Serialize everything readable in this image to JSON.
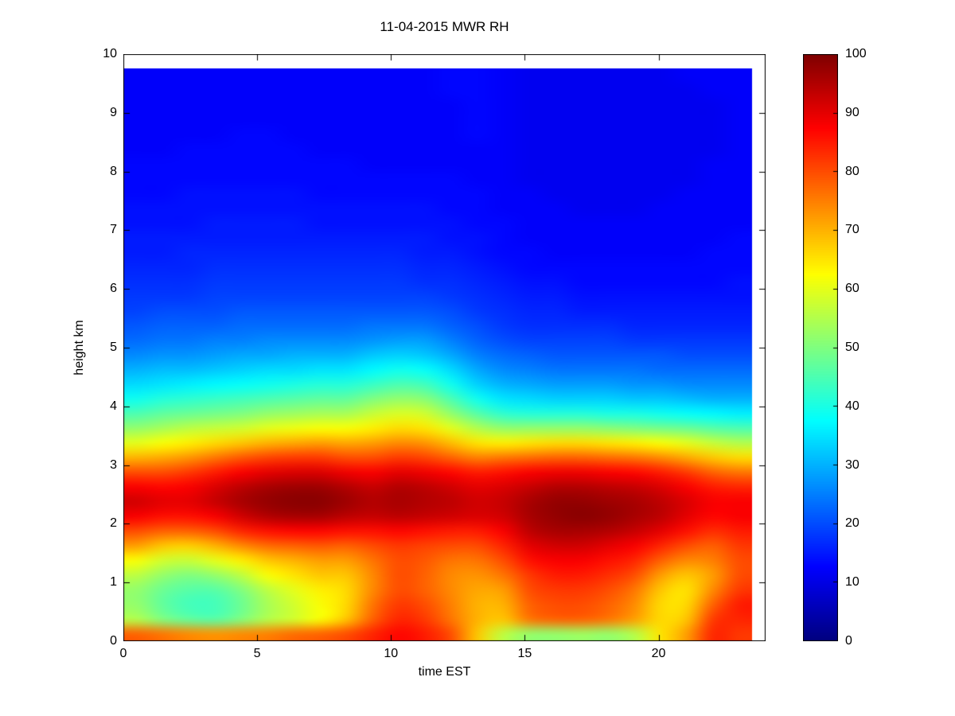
{
  "figure": {
    "title": "11-04-2015 MWR RH",
    "xlabel": "time EST",
    "ylabel": "height km"
  },
  "chart_data": {
    "type": "heatmap",
    "title": "11-04-2015 MWR RH",
    "xlabel": "time EST",
    "ylabel": "height km",
    "colormap": "jet",
    "grid_on": false,
    "xlim": [
      0,
      24
    ],
    "ylim": [
      0,
      10
    ],
    "data_extent": {
      "x": [
        0,
        23.5
      ],
      "y": [
        0,
        9.75
      ]
    },
    "xticks": [
      0,
      5,
      10,
      15,
      20
    ],
    "yticks": [
      0,
      1,
      2,
      3,
      4,
      5,
      6,
      7,
      8,
      9,
      10
    ],
    "colorbar": {
      "min": 0,
      "max": 100,
      "ticks": [
        0,
        10,
        20,
        30,
        40,
        50,
        60,
        70,
        80,
        90,
        100
      ]
    },
    "grid_description": "RH percent; 24 hourly columns (t=0..23 EST) x 39 rows of 0.25 km (0 to 9.75 km); rows ordered bottom_to_top",
    "rows_order": "bottom_to_top",
    "col_width_hr": 1,
    "row_height_km": 0.25,
    "values_rh_percent": [
      [
        78,
        76,
        74,
        73,
        74,
        75,
        77,
        78,
        80,
        84,
        87,
        85,
        80,
        68,
        56,
        52,
        52,
        53,
        52,
        55,
        65,
        72,
        84,
        82
      ],
      [
        55,
        50,
        47,
        46,
        50,
        55,
        58,
        62,
        68,
        78,
        84,
        82,
        76,
        70,
        68,
        76,
        78,
        78,
        76,
        72,
        66,
        68,
        82,
        84
      ],
      [
        52,
        47,
        44,
        44,
        48,
        54,
        58,
        62,
        66,
        76,
        82,
        80,
        75,
        70,
        70,
        78,
        80,
        80,
        78,
        74,
        66,
        66,
        78,
        85
      ],
      [
        52,
        48,
        46,
        46,
        50,
        56,
        60,
        64,
        66,
        74,
        80,
        78,
        74,
        71,
        72,
        80,
        82,
        82,
        80,
        76,
        68,
        65,
        74,
        82
      ],
      [
        56,
        52,
        50,
        52,
        56,
        62,
        65,
        68,
        68,
        74,
        80,
        78,
        74,
        73,
        76,
        82,
        85,
        85,
        83,
        80,
        72,
        68,
        72,
        80
      ],
      [
        62,
        58,
        57,
        60,
        64,
        68,
        70,
        72,
        72,
        76,
        80,
        79,
        76,
        76,
        80,
        86,
        88,
        88,
        86,
        84,
        78,
        74,
        75,
        80
      ],
      [
        72,
        68,
        67,
        70,
        74,
        77,
        78,
        79,
        78,
        80,
        82,
        81,
        80,
        80,
        84,
        90,
        92,
        92,
        90,
        88,
        84,
        80,
        78,
        82
      ],
      [
        80,
        78,
        78,
        80,
        84,
        86,
        87,
        87,
        86,
        86,
        87,
        86,
        85,
        85,
        88,
        94,
        96,
        96,
        95,
        93,
        90,
        86,
        83,
        85
      ],
      [
        88,
        86,
        86,
        88,
        92,
        95,
        96,
        96,
        94,
        93,
        94,
        93,
        92,
        91,
        92,
        96,
        98,
        99,
        98,
        96,
        94,
        90,
        87,
        88
      ],
      [
        92,
        90,
        90,
        93,
        96,
        98,
        99,
        99,
        97,
        95,
        96,
        95,
        94,
        92,
        93,
        96,
        98,
        98,
        97,
        96,
        94,
        91,
        88,
        88
      ],
      [
        88,
        87,
        88,
        91,
        94,
        96,
        97,
        97,
        95,
        93,
        95,
        94,
        92,
        90,
        91,
        93,
        95,
        95,
        94,
        93,
        91,
        88,
        85,
        84
      ],
      [
        80,
        80,
        82,
        85,
        88,
        90,
        91,
        91,
        89,
        88,
        90,
        89,
        87,
        85,
        86,
        88,
        89,
        89,
        88,
        87,
        85,
        82,
        78,
        76
      ],
      [
        70,
        71,
        73,
        76,
        79,
        81,
        82,
        82,
        80,
        80,
        82,
        81,
        78,
        75,
        76,
        77,
        78,
        78,
        77,
        76,
        74,
        71,
        68,
        66
      ],
      [
        60,
        62,
        64,
        66,
        68,
        70,
        71,
        72,
        71,
        72,
        74,
        73,
        69,
        65,
        64,
        65,
        66,
        66,
        65,
        64,
        62,
        60,
        57,
        55
      ],
      [
        52,
        54,
        56,
        57,
        58,
        60,
        61,
        62,
        62,
        64,
        66,
        65,
        60,
        55,
        52,
        52,
        52,
        52,
        51,
        50,
        49,
        48,
        46,
        45
      ],
      [
        45,
        47,
        48,
        49,
        50,
        52,
        53,
        54,
        54,
        57,
        59,
        58,
        52,
        46,
        42,
        41,
        41,
        41,
        40,
        40,
        39,
        38,
        37,
        36
      ],
      [
        39,
        41,
        42,
        43,
        44,
        45,
        46,
        47,
        47,
        50,
        52,
        51,
        45,
        39,
        35,
        34,
        33,
        33,
        33,
        32,
        32,
        31,
        30,
        30
      ],
      [
        34,
        35,
        36,
        37,
        38,
        39,
        40,
        41,
        41,
        43,
        45,
        44,
        39,
        33,
        30,
        29,
        28,
        28,
        28,
        27,
        27,
        26,
        26,
        26
      ],
      [
        30,
        31,
        31,
        32,
        33,
        34,
        34,
        35,
        35,
        37,
        39,
        38,
        34,
        29,
        26,
        25,
        24,
        24,
        24,
        24,
        23,
        23,
        23,
        23
      ],
      [
        26,
        27,
        27,
        28,
        29,
        29,
        30,
        30,
        30,
        32,
        33,
        32,
        29,
        25,
        23,
        22,
        21,
        21,
        21,
        21,
        21,
        20,
        20,
        20
      ],
      [
        23,
        24,
        24,
        25,
        25,
        26,
        26,
        26,
        26,
        27,
        28,
        28,
        25,
        22,
        20,
        19,
        19,
        19,
        19,
        18,
        18,
        18,
        18,
        18
      ],
      [
        21,
        22,
        22,
        22,
        23,
        23,
        23,
        23,
        23,
        24,
        24,
        24,
        22,
        20,
        18,
        17,
        17,
        17,
        17,
        16,
        16,
        16,
        16,
        16
      ],
      [
        19,
        20,
        20,
        20,
        21,
        21,
        21,
        21,
        21,
        21,
        21,
        21,
        20,
        18,
        17,
        16,
        16,
        15,
        15,
        15,
        15,
        15,
        15,
        15
      ],
      [
        18,
        18,
        18,
        19,
        19,
        19,
        19,
        19,
        19,
        19,
        19,
        19,
        18,
        17,
        16,
        15,
        15,
        14,
        14,
        14,
        14,
        14,
        14,
        14
      ],
      [
        17,
        17,
        17,
        18,
        18,
        18,
        18,
        18,
        18,
        18,
        18,
        17,
        17,
        16,
        15,
        14,
        14,
        13,
        13,
        13,
        13,
        13,
        13,
        14
      ],
      [
        16,
        16,
        16,
        17,
        17,
        17,
        17,
        17,
        17,
        17,
        17,
        16,
        16,
        15,
        14,
        13,
        13,
        13,
        13,
        13,
        13,
        13,
        13,
        13
      ],
      [
        15,
        15,
        16,
        16,
        16,
        16,
        16,
        16,
        16,
        16,
        16,
        15,
        15,
        14,
        13,
        13,
        12,
        12,
        12,
        12,
        12,
        12,
        13,
        13
      ],
      [
        15,
        15,
        15,
        15,
        15,
        15,
        15,
        15,
        15,
        15,
        15,
        15,
        14,
        14,
        13,
        12,
        12,
        12,
        12,
        12,
        12,
        12,
        12,
        13
      ],
      [
        14,
        14,
        14,
        15,
        15,
        15,
        15,
        14,
        14,
        14,
        14,
        14,
        14,
        13,
        13,
        12,
        12,
        12,
        12,
        12,
        12,
        12,
        12,
        12
      ],
      [
        14,
        14,
        14,
        14,
        14,
        14,
        14,
        14,
        14,
        14,
        14,
        14,
        13,
        13,
        12,
        12,
        12,
        11,
        11,
        11,
        12,
        12,
        12,
        12
      ],
      [
        13,
        13,
        14,
        14,
        14,
        14,
        14,
        13,
        13,
        13,
        13,
        13,
        13,
        13,
        12,
        12,
        11,
        11,
        11,
        11,
        11,
        12,
        12,
        12
      ],
      [
        13,
        13,
        13,
        13,
        13,
        13,
        13,
        13,
        13,
        13,
        13,
        13,
        13,
        12,
        12,
        11,
        11,
        11,
        11,
        11,
        11,
        11,
        12,
        12
      ],
      [
        13,
        13,
        13,
        13,
        13,
        13,
        13,
        13,
        13,
        12,
        12,
        12,
        12,
        12,
        12,
        11,
        11,
        11,
        11,
        11,
        11,
        11,
        12,
        12
      ],
      [
        12,
        12,
        13,
        13,
        13,
        13,
        13,
        12,
        12,
        12,
        12,
        12,
        12,
        12,
        12,
        11,
        11,
        11,
        11,
        11,
        11,
        11,
        11,
        12
      ],
      [
        12,
        12,
        12,
        12,
        13,
        13,
        12,
        12,
        12,
        12,
        12,
        12,
        12,
        13,
        12,
        11,
        11,
        11,
        11,
        11,
        11,
        11,
        11,
        12
      ],
      [
        12,
        12,
        12,
        12,
        12,
        12,
        12,
        12,
        12,
        12,
        12,
        12,
        12,
        13,
        12,
        11,
        11,
        11,
        11,
        11,
        11,
        11,
        11,
        12
      ],
      [
        12,
        12,
        12,
        12,
        12,
        12,
        12,
        12,
        12,
        12,
        12,
        12,
        12,
        13,
        12,
        11,
        11,
        11,
        11,
        11,
        11,
        11,
        11,
        12
      ],
      [
        12,
        12,
        12,
        12,
        12,
        12,
        12,
        12,
        12,
        12,
        12,
        12,
        13,
        13,
        12,
        11,
        11,
        11,
        11,
        11,
        11,
        11,
        12,
        12
      ],
      [
        12,
        12,
        12,
        12,
        12,
        12,
        12,
        12,
        12,
        12,
        12,
        12,
        13,
        13,
        12,
        11,
        11,
        11,
        11,
        11,
        11,
        12,
        12,
        12
      ]
    ]
  }
}
